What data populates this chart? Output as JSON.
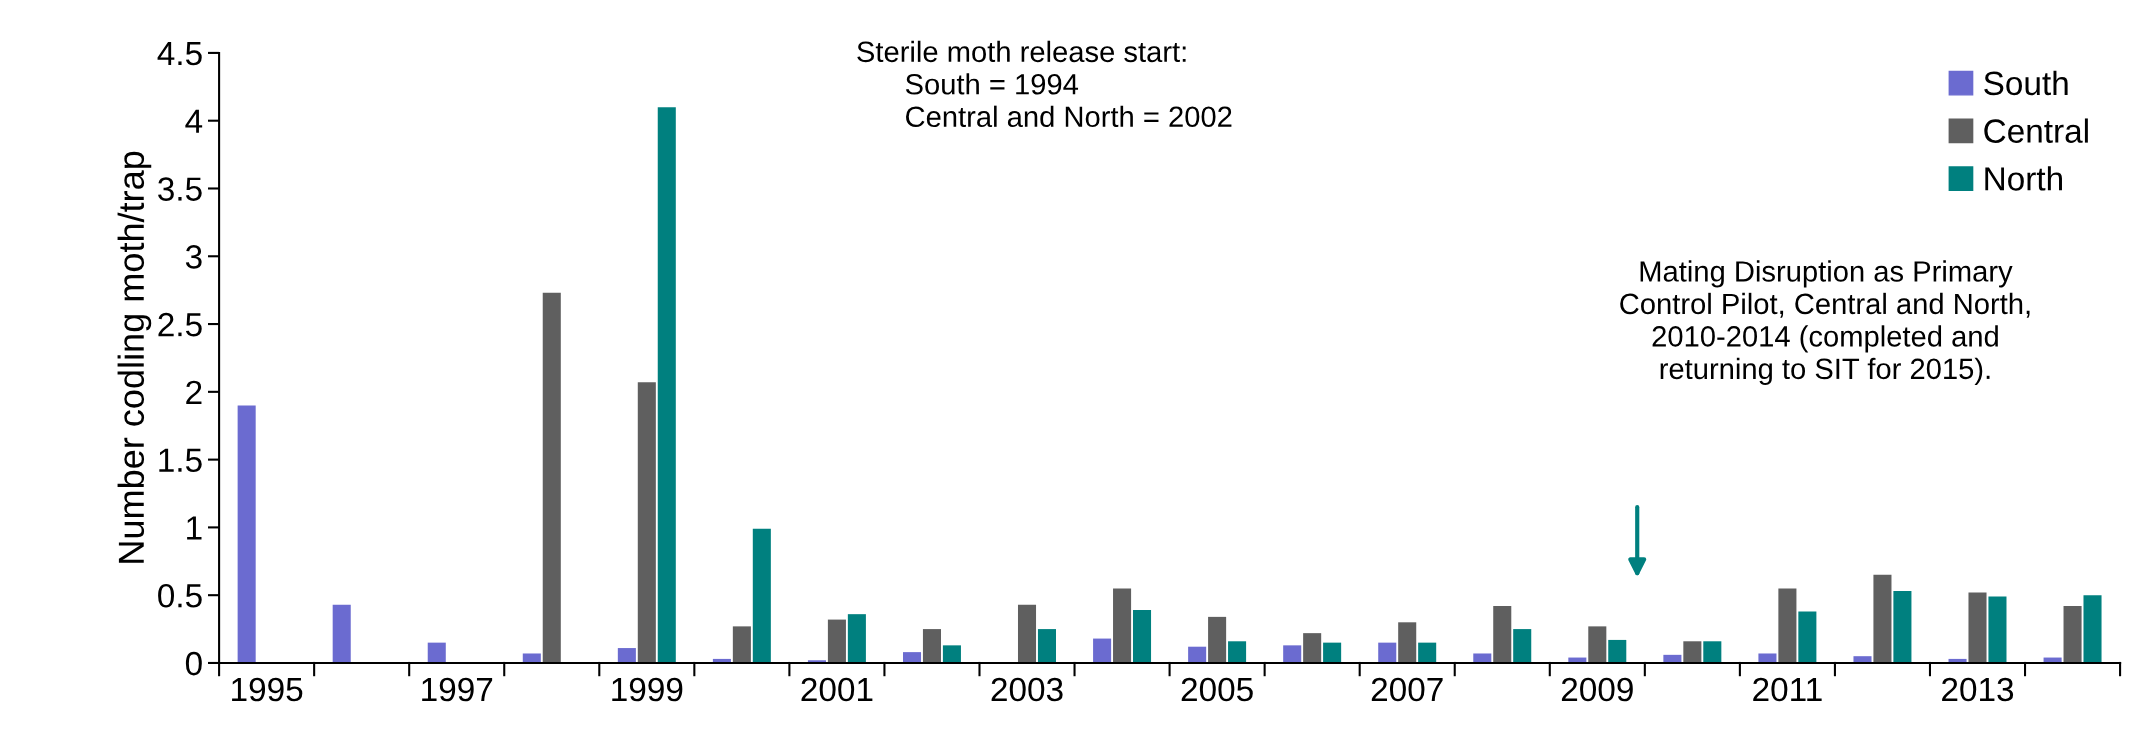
{
  "chart_data": {
    "type": "bar",
    "ylabel": "Number codling moth/trap",
    "categories": [
      "1995",
      null,
      "1997",
      null,
      "1999",
      null,
      "2001",
      null,
      "2003",
      null,
      "2005",
      null,
      "2007",
      null,
      "2009",
      null,
      "2011",
      null,
      "2013",
      null
    ],
    "series": [
      {
        "name": "South",
        "color": "#6b6bd0",
        "values": [
          1.9,
          0.43,
          0.15,
          0.07,
          0.11,
          0.03,
          0.02,
          0.08,
          null,
          0.18,
          0.12,
          0.13,
          0.15,
          0.07,
          0.04,
          0.06,
          0.07,
          0.05,
          0.03,
          0.04
        ]
      },
      {
        "name": "Central",
        "color": "#5f5f5f",
        "values": [
          null,
          null,
          null,
          2.73,
          2.07,
          0.27,
          0.32,
          0.25,
          0.43,
          0.55,
          0.34,
          0.22,
          0.3,
          0.42,
          0.27,
          0.16,
          0.55,
          0.65,
          0.52,
          0.42
        ]
      },
      {
        "name": "North",
        "color": "#00807f",
        "values": [
          null,
          null,
          null,
          null,
          4.1,
          0.99,
          0.36,
          0.13,
          0.25,
          0.39,
          0.16,
          0.15,
          0.15,
          0.25,
          0.17,
          0.16,
          0.38,
          0.53,
          0.49,
          0.5
        ]
      }
    ],
    "ylim": [
      0,
      4.5
    ],
    "yticks": [
      0,
      0.5,
      1,
      1.5,
      2,
      2.5,
      3,
      3.5,
      4,
      4.5
    ],
    "legend": "top right",
    "grid": false,
    "annotations": [
      "Sterile moth release start:\n      South = 1994\n      Central and North = 2002",
      "Mating Disruption as Primary\nControl Pilot, Central and North,\n2010-2014 (completed and\nreturning to SIT for 2015)."
    ]
  }
}
